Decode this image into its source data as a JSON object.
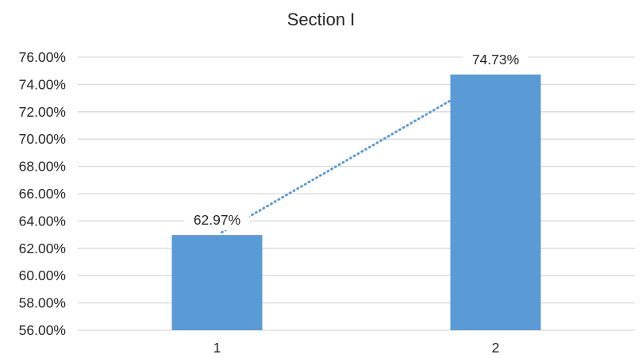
{
  "chart_data": {
    "type": "bar",
    "title": "Section I",
    "xlabel": "",
    "ylabel": "",
    "categories": [
      "1",
      "2"
    ],
    "series": [
      {
        "values": [
          62.97,
          74.73
        ],
        "labels": [
          "62.97%",
          "74.73%"
        ]
      }
    ],
    "trendline": {
      "type": "linear",
      "style": "dotted"
    },
    "ylim": [
      56,
      76
    ],
    "yticks": [
      "56.00%",
      "58.00%",
      "60.00%",
      "62.00%",
      "64.00%",
      "66.00%",
      "68.00%",
      "70.00%",
      "72.00%",
      "74.00%",
      "76.00%"
    ],
    "grid": true,
    "legend": "none",
    "colors": {
      "bar": "#5b9bd5",
      "trendline": "#5b9bd5",
      "grid": "#d9d9d9",
      "text": "#262626"
    }
  }
}
